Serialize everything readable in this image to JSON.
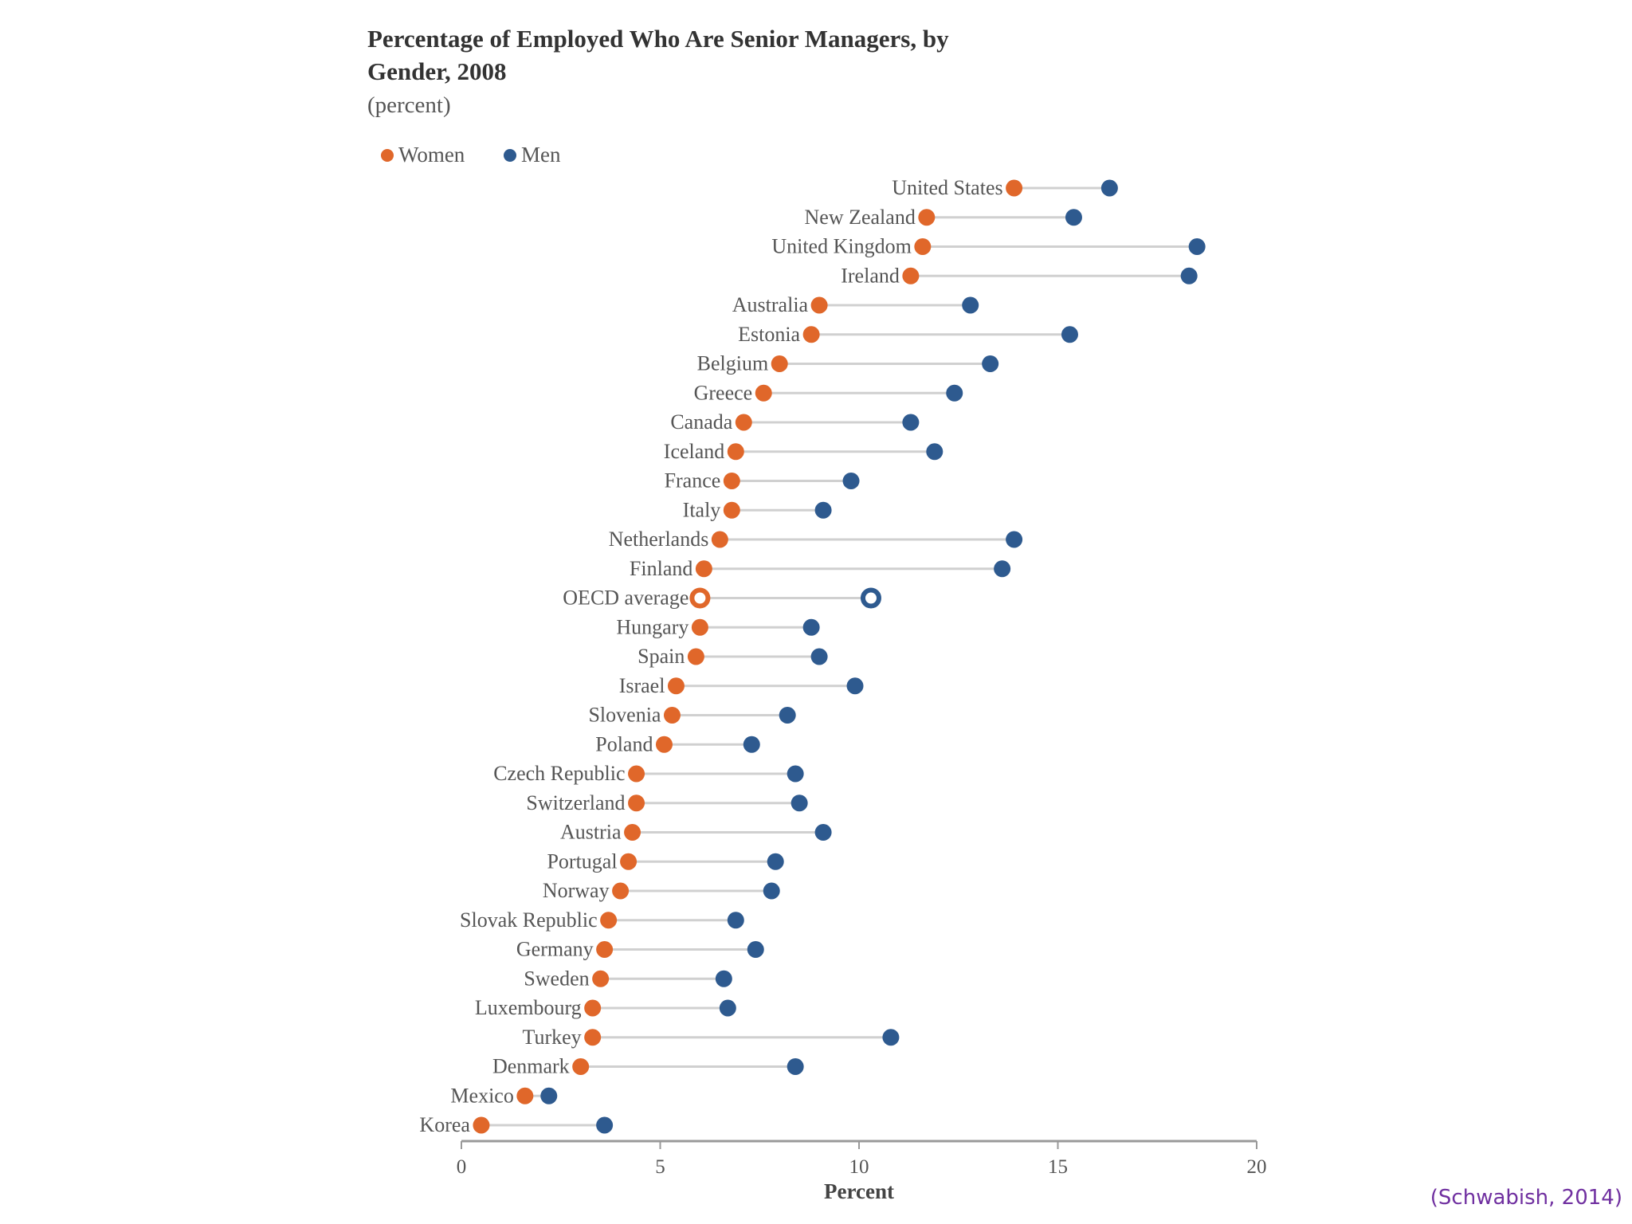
{
  "colors": {
    "women": "#e0672a",
    "men": "#2e5a8f",
    "connector": "#d0d0d0",
    "axis": "#999999",
    "citation": "#7030a0"
  },
  "citation": "(Schwabish, 2014)",
  "chart_data": {
    "type": "scatter",
    "subtype": "dumbbell",
    "title_lines": [
      "Percentage of Employed Who Are Senior Managers,  by",
      "Gender, 2008"
    ],
    "subtitle": "(percent)",
    "xlabel": "Percent",
    "ylabel": "",
    "xlim": [
      0,
      20
    ],
    "xticks": [
      0,
      5,
      10,
      15,
      20
    ],
    "xtick_labels": [
      "0",
      "5",
      "10",
      "15",
      "20"
    ],
    "grid": false,
    "legend_position": "top-left",
    "series": [
      {
        "name": "Women",
        "color": "#e0672a"
      },
      {
        "name": "Men",
        "color": "#2e5a8f"
      }
    ],
    "categories": [
      "United States",
      "New Zealand",
      "United Kingdom",
      "Ireland",
      "Australia",
      "Estonia",
      "Belgium",
      "Greece",
      "Canada",
      "Iceland",
      "France",
      "Italy",
      "Netherlands",
      "Finland",
      "OECD average",
      "Hungary",
      "Spain",
      "Israel",
      "Slovenia",
      "Poland",
      "Czech Republic",
      "Switzerland",
      "Austria",
      "Portugal",
      "Norway",
      "Slovak Republic",
      "Germany",
      "Sweden",
      "Luxembourg",
      "Turkey",
      "Denmark",
      "Mexico",
      "Korea"
    ],
    "women": [
      13.9,
      11.7,
      11.6,
      11.3,
      9.0,
      8.8,
      8.0,
      7.6,
      7.1,
      6.9,
      6.8,
      6.8,
      6.5,
      6.1,
      6.0,
      6.0,
      5.9,
      5.4,
      5.3,
      5.1,
      4.4,
      4.4,
      4.3,
      4.2,
      4.0,
      3.7,
      3.6,
      3.5,
      3.3,
      3.3,
      3.0,
      1.6,
      0.5
    ],
    "men": [
      16.3,
      15.4,
      18.5,
      18.3,
      12.8,
      15.3,
      13.3,
      12.4,
      11.3,
      11.9,
      9.8,
      9.1,
      13.9,
      13.6,
      10.3,
      8.8,
      9.0,
      9.9,
      8.2,
      7.3,
      8.4,
      8.5,
      9.1,
      7.9,
      7.8,
      6.9,
      7.4,
      6.6,
      6.7,
      10.8,
      8.4,
      2.2,
      3.6
    ],
    "highlight": "OECD average"
  }
}
